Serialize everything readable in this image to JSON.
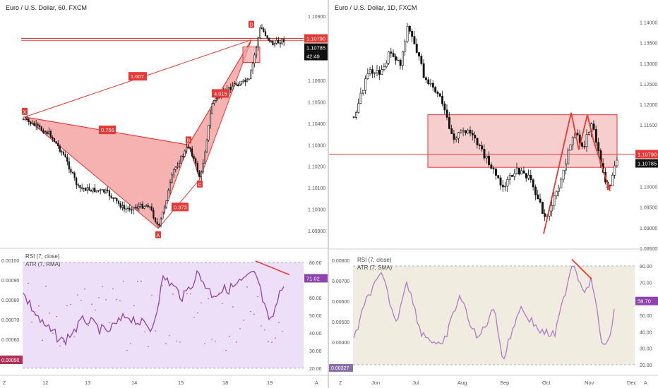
{
  "left": {
    "title": "Euro / U.S. Dollar, 60, FXCM",
    "price_axis": [
      "1.10900",
      "1.10790",
      "1.10785",
      "42:49",
      "1.10600",
      "1.10500",
      "1.10400",
      "1.10300",
      "1.10200",
      "1.10100",
      "1.10000",
      "1.09900"
    ],
    "time_axis": [
      "12",
      "13",
      "14",
      "15",
      "18",
      "19"
    ],
    "pattern_points": [
      "X",
      "A",
      "B",
      "C",
      "D"
    ],
    "ratios": [
      "1.607",
      "0.756",
      "4.015",
      "0.373"
    ],
    "indicator_labels": [
      "RSI (7, close)",
      "ATR (7, RMA)"
    ],
    "indicator_left_axis": [
      "0.00100",
      "0.00090",
      "0.00080",
      "0.00070",
      "0.00060",
      "0.00050"
    ],
    "indicator_right_axis": [
      "80.00",
      "71.02",
      "60.00",
      "50.00",
      "40.00",
      "30.00",
      "20.00"
    ],
    "corner_z": "Z",
    "corner_a": "A"
  },
  "right": {
    "title": "Euro / U.S. Dollar, 1D, FXCM",
    "price_axis": [
      "1.14000",
      "1.13500",
      "1.13000",
      "1.12500",
      "1.12000",
      "1.11500",
      "1.10790",
      "1.10785",
      "1.10000",
      "1.09500",
      "1.09000",
      "1.08500"
    ],
    "time_axis": [
      "Jun",
      "Jul",
      "Aug",
      "Sep",
      "Oct",
      "Nov",
      "Dec"
    ],
    "indicator_labels": [
      "RSI (7, close)",
      "ATR (7, SMA)"
    ],
    "indicator_left_axis": [
      "0.00800",
      "0.00700",
      "0.00600",
      "0.00500",
      "0.00400",
      "0.00327"
    ],
    "indicator_right_axis": [
      "80.00",
      "70.00",
      "58.70",
      "50.00",
      "40.00",
      "30.00",
      "20.00"
    ],
    "corner_z": "Z",
    "corner_a": "A"
  },
  "chart_data": [
    {
      "type": "candlestick",
      "title": "Euro / U.S. Dollar, 60, FXCM",
      "x_ticks": [
        "12",
        "13",
        "14",
        "15",
        "18",
        "19"
      ],
      "ylim": [
        1.0985,
        1.1093
      ],
      "last_price": 1.1079,
      "harmonic_pattern": {
        "points": {
          "X": 1.1043,
          "A": 1.0991,
          "B": 1.103,
          "C": 1.1014,
          "D": 1.1079
        },
        "ratios": {
          "XB": 0.756,
          "AC": 0.373,
          "BD": 4.015,
          "XD": 1.607
        }
      },
      "rsi": {
        "name": "RSI (7, close)",
        "last": 71.02,
        "ylim": [
          20,
          80
        ]
      },
      "atr": {
        "name": "ATR (7, RMA)",
        "ylim": [
          0.0005,
          0.001
        ]
      },
      "colors": {
        "red": "#e53935",
        "fill": "#f4a3a3",
        "rsi": "#8e44ad",
        "rsi_bg": "#ecdff7"
      }
    },
    {
      "type": "candlestick",
      "title": "Euro / U.S. Dollar, 1D, FXCM",
      "x_ticks": [
        "Jun",
        "Jul",
        "Aug",
        "Sep",
        "Oct",
        "Nov",
        "Dec"
      ],
      "ylim": [
        1.085,
        1.143
      ],
      "last_price": 1.1079,
      "zone": [
        1.1047,
        1.1175
      ],
      "rsi": {
        "name": "RSI (7, close)",
        "last": 58.7,
        "ylim": [
          20,
          80
        ]
      },
      "atr": {
        "name": "ATR (7, SMA)",
        "ylim": [
          0.00327,
          0.008
        ]
      },
      "colors": {
        "red": "#e53935",
        "fill": "#f6c5c5",
        "rsi": "#b07cc6",
        "rsi_bg": "#f1ece0"
      }
    }
  ]
}
